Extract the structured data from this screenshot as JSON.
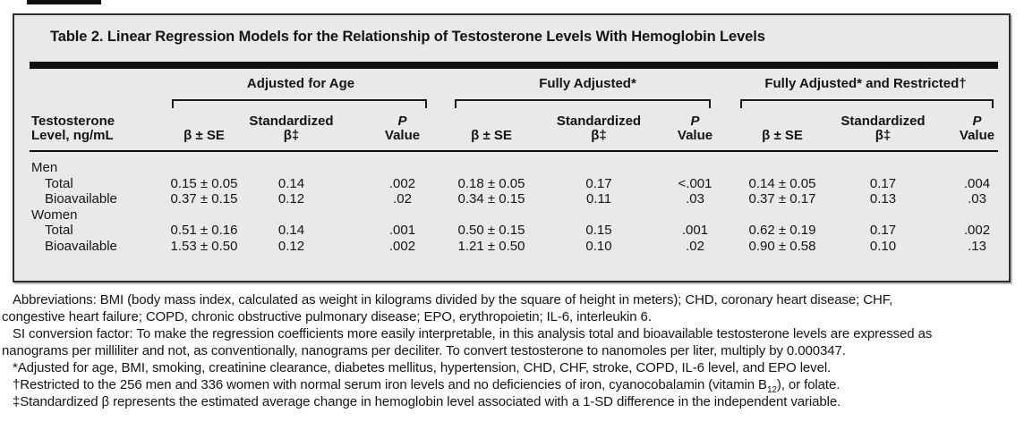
{
  "colors": {
    "page_background": "#ffffff",
    "panel_background": "#e8e9e9",
    "panel_border": "#2e2e2e",
    "text": "#141414",
    "rule": "#101010"
  },
  "table": {
    "title": "Table 2. Linear Regression Models for the Relationship of Testosterone Levels With Hemoglobin Levels",
    "stub_head": {
      "line1": "Testosterone",
      "line2": "Level, ng/mL"
    },
    "groups": [
      {
        "label": "Adjusted for Age"
      },
      {
        "label": "Fully Adjusted*"
      },
      {
        "label": "Fully Adjusted* and Restricted†"
      }
    ],
    "sub": {
      "beta_se": "β ± SE",
      "std_line1": "Standardized",
      "std_line2": "β‡",
      "p_line1": "P",
      "p_line2": "Value"
    },
    "rows": [
      {
        "type": "section",
        "label": "Men"
      },
      {
        "type": "data",
        "label": "Total",
        "values": [
          "0.15 ± 0.05",
          "0.14",
          ".002",
          "0.18 ± 0.05",
          "0.17",
          "<.001",
          "0.14 ± 0.05",
          "0.17",
          ".004"
        ]
      },
      {
        "type": "data",
        "label": "Bioavailable",
        "values": [
          "0.37 ± 0.15",
          "0.12",
          ".02",
          "0.34 ± 0.15",
          "0.11",
          ".03",
          "0.37 ± 0.17",
          "0.13",
          ".03"
        ]
      },
      {
        "type": "section",
        "label": "Women"
      },
      {
        "type": "data",
        "label": "Total",
        "values": [
          "0.51 ± 0.16",
          "0.14",
          ".001",
          "0.50 ± 0.15",
          "0.15",
          ".001",
          "0.62 ± 0.19",
          "0.17",
          ".002"
        ]
      },
      {
        "type": "data",
        "label": "Bioavailable",
        "values": [
          "1.53 ± 0.50",
          "0.12",
          ".002",
          "1.21 ± 0.50",
          "0.10",
          ".02",
          "0.90 ± 0.58",
          "0.10",
          ".13"
        ]
      }
    ]
  },
  "footnotes": {
    "abbreviations": "Abbreviations: BMI (body mass index, calculated as weight in kilograms divided by the square of height in meters); CHD, coronary heart disease; CHF,\ncongestive heart failure; COPD, chronic obstructive pulmonary disease; EPO, erythropoietin; IL-6, interleukin 6.",
    "si_conversion": "SI conversion factor: To make the regression coefficients more easily interpretable, in this analysis total and bioavailable testosterone levels are expressed as\nnanograms per milliliter and not, as conventionally, nanograms per deciliter. To convert testosterone to nanomoles per liter, multiply by 0.000347.",
    "asterisk": "*Adjusted for age, BMI, smoking, creatinine clearance, diabetes mellitus, hypertension, CHD, CHF, stroke, COPD, IL-6 level, and EPO level.",
    "dagger_pre": "†Restricted to the 256 men and 336 women with normal serum iron levels and no deficiencies of iron, cyanocobalamin (vitamin B",
    "dagger_sub": "12",
    "dagger_post": "), or folate.",
    "double_dagger": "‡Standardized β represents the estimated average change in hemoglobin level associated with a 1-SD difference in the independent variable."
  }
}
